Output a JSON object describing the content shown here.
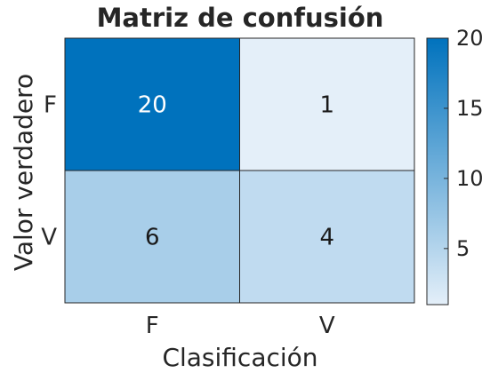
{
  "chart_data": {
    "type": "heatmap",
    "title": "Matriz de confusión",
    "xlabel": "Clasificación",
    "ylabel": "Valor verdadero",
    "x_categories": [
      "F",
      "V"
    ],
    "y_categories": [
      "F",
      "V"
    ],
    "values": [
      [
        20,
        1
      ],
      [
        6,
        4
      ]
    ],
    "colorbar": {
      "range": [
        1,
        20
      ],
      "ticks": [
        5,
        10,
        15,
        20
      ],
      "color_low": "#e4eff9",
      "color_high": "#0072bd"
    },
    "grid": false
  }
}
